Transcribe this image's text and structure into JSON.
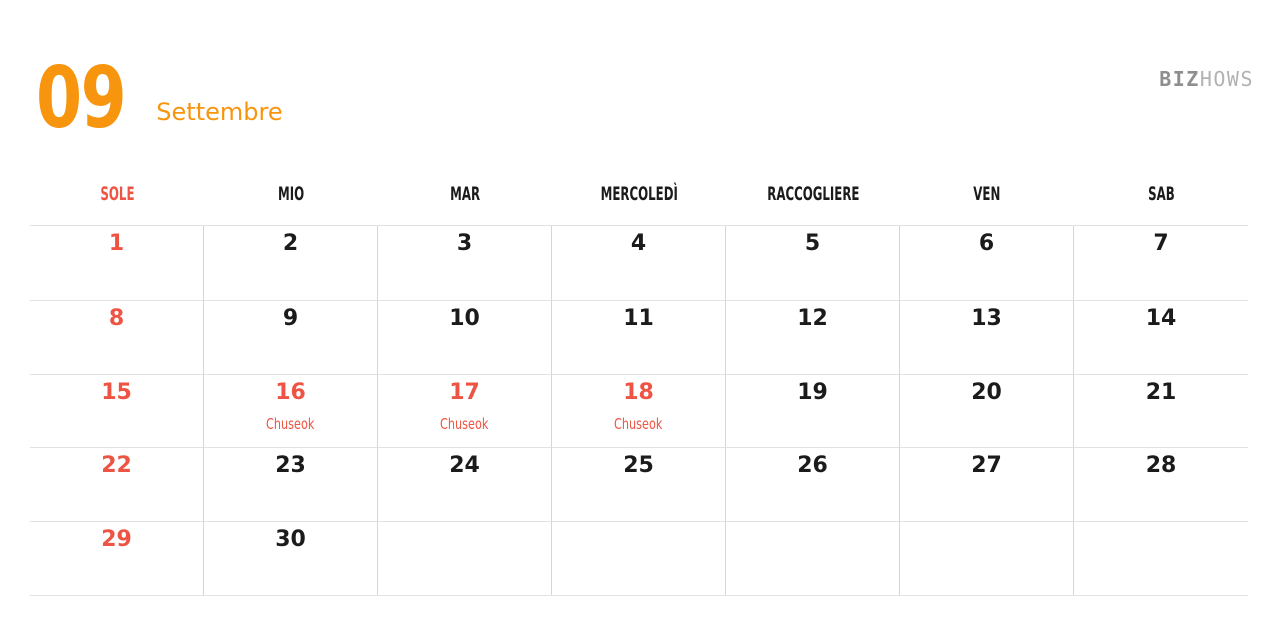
{
  "title": {
    "month_number": "09",
    "month_name": "Settembre"
  },
  "logo": {
    "part1": "BIZ",
    "part2": "HOWS"
  },
  "colors": {
    "accent_orange": "#F8950F",
    "accent_coral": "#EE5443",
    "text": "#1B1B1B",
    "grid_line_horizontal": "#E3E1E3",
    "grid_line_vertical": "#D7D5D7",
    "logo_dark": "#8E8E8E",
    "logo_light": "#B2B2B2",
    "background": "#FFFFFF"
  },
  "weekdays": [
    {
      "label": "SOLE",
      "accent": true
    },
    {
      "label": "MIO",
      "accent": false
    },
    {
      "label": "MAR",
      "accent": false
    },
    {
      "label": "MERCOLEDÌ",
      "accent": false
    },
    {
      "label": "RACCOGLIERE",
      "accent": false
    },
    {
      "label": "VEN",
      "accent": false
    },
    {
      "label": "SAB",
      "accent": false
    }
  ],
  "calendar": {
    "cells": [
      {
        "day": "1",
        "note": "",
        "accent": true
      },
      {
        "day": "2",
        "note": "",
        "accent": false
      },
      {
        "day": "3",
        "note": "",
        "accent": false
      },
      {
        "day": "4",
        "note": "",
        "accent": false
      },
      {
        "day": "5",
        "note": "",
        "accent": false
      },
      {
        "day": "6",
        "note": "",
        "accent": false
      },
      {
        "day": "7",
        "note": "",
        "accent": false
      },
      {
        "day": "8",
        "note": "",
        "accent": true
      },
      {
        "day": "9",
        "note": "",
        "accent": false
      },
      {
        "day": "10",
        "note": "",
        "accent": false
      },
      {
        "day": "11",
        "note": "",
        "accent": false
      },
      {
        "day": "12",
        "note": "",
        "accent": false
      },
      {
        "day": "13",
        "note": "",
        "accent": false
      },
      {
        "day": "14",
        "note": "",
        "accent": false
      },
      {
        "day": "15",
        "note": "",
        "accent": true
      },
      {
        "day": "16",
        "note": "Chuseok",
        "accent": true
      },
      {
        "day": "17",
        "note": "Chuseok",
        "accent": true
      },
      {
        "day": "18",
        "note": "Chuseok",
        "accent": true
      },
      {
        "day": "19",
        "note": "",
        "accent": false
      },
      {
        "day": "20",
        "note": "",
        "accent": false
      },
      {
        "day": "21",
        "note": "",
        "accent": false
      },
      {
        "day": "22",
        "note": "",
        "accent": true
      },
      {
        "day": "23",
        "note": "",
        "accent": false
      },
      {
        "day": "24",
        "note": "",
        "accent": false
      },
      {
        "day": "25",
        "note": "",
        "accent": false
      },
      {
        "day": "26",
        "note": "",
        "accent": false
      },
      {
        "day": "27",
        "note": "",
        "accent": false
      },
      {
        "day": "28",
        "note": "",
        "accent": false
      },
      {
        "day": "29",
        "note": "",
        "accent": true
      },
      {
        "day": "30",
        "note": "",
        "accent": false
      },
      {
        "day": "",
        "note": "",
        "accent": false
      },
      {
        "day": "",
        "note": "",
        "accent": false
      },
      {
        "day": "",
        "note": "",
        "accent": false
      },
      {
        "day": "",
        "note": "",
        "accent": false
      },
      {
        "day": "",
        "note": "",
        "accent": false
      }
    ]
  }
}
